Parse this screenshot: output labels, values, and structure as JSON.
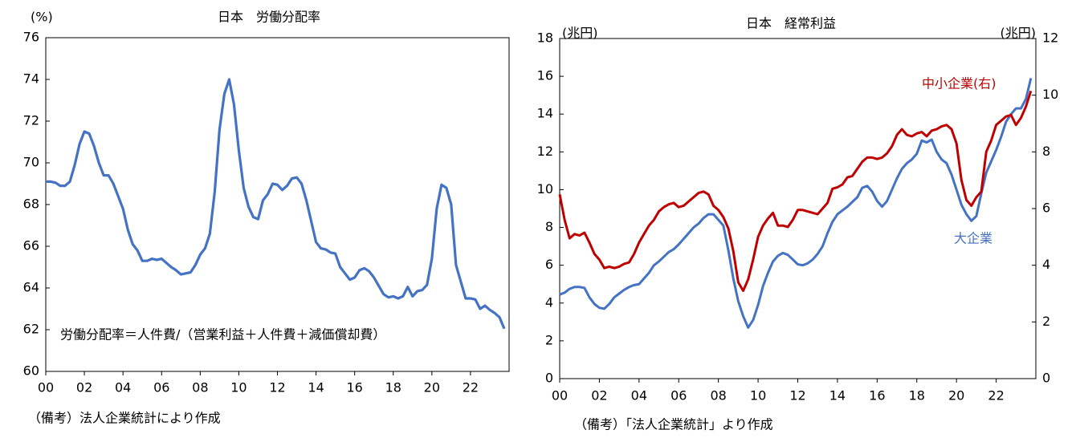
{
  "chart_data": [
    {
      "type": "line",
      "title": "日本　労働分配率",
      "ylabel": "(%)",
      "annotation": "労働分配率＝人件費/（営業利益＋人件費＋減価償却費）",
      "note": "（備考）法人企業統計により作成",
      "x": [
        2000,
        2000.25,
        2000.5,
        2000.75,
        2001,
        2001.25,
        2001.5,
        2001.75,
        2002,
        2002.25,
        2002.5,
        2002.75,
        2003,
        2003.25,
        2003.5,
        2003.75,
        2004,
        2004.25,
        2004.5,
        2004.75,
        2005,
        2005.25,
        2005.5,
        2005.75,
        2006,
        2006.25,
        2006.5,
        2006.75,
        2007,
        2007.25,
        2007.5,
        2007.75,
        2008,
        2008.25,
        2008.5,
        2008.75,
        2009,
        2009.25,
        2009.5,
        2009.75,
        2010,
        2010.25,
        2010.5,
        2010.75,
        2011,
        2011.25,
        2011.5,
        2011.75,
        2012,
        2012.25,
        2012.5,
        2012.75,
        2013,
        2013.25,
        2013.5,
        2013.75,
        2014,
        2014.25,
        2014.5,
        2014.75,
        2015,
        2015.25,
        2015.5,
        2015.75,
        2016,
        2016.25,
        2016.5,
        2016.75,
        2017,
        2017.25,
        2017.5,
        2017.75,
        2018,
        2018.25,
        2018.5,
        2018.75,
        2019,
        2019.25,
        2019.5,
        2019.75,
        2020,
        2020.25,
        2020.5,
        2020.75,
        2021,
        2021.25,
        2021.5,
        2021.75,
        2022,
        2022.25,
        2022.5,
        2022.75,
        2023,
        2023.25,
        2023.5,
        2023.75
      ],
      "series": [
        {
          "name": "労働分配率",
          "color": "#4472c4",
          "values": [
            69.1,
            69.1,
            69.05,
            68.9,
            68.9,
            69.1,
            69.9,
            70.9,
            71.5,
            71.4,
            70.8,
            70.0,
            69.4,
            69.4,
            69.0,
            68.4,
            67.8,
            66.8,
            66.1,
            65.8,
            65.3,
            65.3,
            65.4,
            65.35,
            65.4,
            65.2,
            65.0,
            64.85,
            64.65,
            64.7,
            64.75,
            65.1,
            65.6,
            65.9,
            66.6,
            68.6,
            71.6,
            73.3,
            74.0,
            72.8,
            70.6,
            68.8,
            67.9,
            67.4,
            67.3,
            68.2,
            68.5,
            69.0,
            68.95,
            68.7,
            68.9,
            69.25,
            69.3,
            69.0,
            68.2,
            67.2,
            66.2,
            65.9,
            65.85,
            65.7,
            65.65,
            65.0,
            64.7,
            64.4,
            64.5,
            64.85,
            64.95,
            64.8,
            64.5,
            64.1,
            63.7,
            63.55,
            63.6,
            63.5,
            63.6,
            64.05,
            63.6,
            63.85,
            63.9,
            64.15,
            65.4,
            67.8,
            68.95,
            68.8,
            68.0,
            65.1,
            64.3,
            63.5,
            63.5,
            63.45,
            63.0,
            63.15,
            62.95,
            62.8,
            62.6,
            62.05
          ]
        }
      ],
      "xlim": [
        2000,
        2024
      ],
      "xticks": [
        {
          "value": 2000,
          "label": "00"
        },
        {
          "value": 2002,
          "label": "02"
        },
        {
          "value": 2004,
          "label": "04"
        },
        {
          "value": 2006,
          "label": "06"
        },
        {
          "value": 2008,
          "label": "08"
        },
        {
          "value": 2010,
          "label": "10"
        },
        {
          "value": 2012,
          "label": "12"
        },
        {
          "value": 2014,
          "label": "14"
        },
        {
          "value": 2016,
          "label": "16"
        },
        {
          "value": 2018,
          "label": "18"
        },
        {
          "value": 2020,
          "label": "20"
        },
        {
          "value": 2022,
          "label": "22"
        }
      ],
      "ylim": [
        60,
        76
      ],
      "yticks": [
        60,
        62,
        64,
        66,
        68,
        70,
        72,
        74,
        76
      ],
      "grid": false
    },
    {
      "type": "line",
      "title": "日本　経常利益",
      "ylabel": "(兆円)",
      "y2label": "(兆円)",
      "note": "（備考）「法人企業統計」より作成",
      "x": [
        2000,
        2000.25,
        2000.5,
        2000.75,
        2001,
        2001.25,
        2001.5,
        2001.75,
        2002,
        2002.25,
        2002.5,
        2002.75,
        2003,
        2003.25,
        2003.5,
        2003.75,
        2004,
        2004.25,
        2004.5,
        2004.75,
        2005,
        2005.25,
        2005.5,
        2005.75,
        2006,
        2006.25,
        2006.5,
        2006.75,
        2007,
        2007.25,
        2007.5,
        2007.75,
        2008,
        2008.25,
        2008.5,
        2008.75,
        2009,
        2009.25,
        2009.5,
        2009.75,
        2010,
        2010.25,
        2010.5,
        2010.75,
        2011,
        2011.25,
        2011.5,
        2011.75,
        2012,
        2012.25,
        2012.5,
        2012.75,
        2013,
        2013.25,
        2013.5,
        2013.75,
        2014,
        2014.25,
        2014.5,
        2014.75,
        2015,
        2015.25,
        2015.5,
        2015.75,
        2016,
        2016.25,
        2016.5,
        2016.75,
        2017,
        2017.25,
        2017.5,
        2017.75,
        2018,
        2018.25,
        2018.5,
        2018.75,
        2019,
        2019.25,
        2019.5,
        2019.75,
        2020,
        2020.25,
        2020.5,
        2020.75,
        2021,
        2021.25,
        2021.5,
        2021.75,
        2022,
        2022.25,
        2022.5,
        2022.75,
        2023,
        2023.25,
        2023.5,
        2023.75
      ],
      "series": [
        {
          "name": "大企業",
          "color": "#4472c4",
          "values": [
            4.45,
            4.55,
            4.75,
            4.85,
            4.85,
            4.8,
            4.3,
            3.95,
            3.75,
            3.7,
            3.95,
            4.3,
            4.5,
            4.7,
            4.85,
            4.95,
            5.0,
            5.3,
            5.6,
            6.0,
            6.2,
            6.45,
            6.7,
            6.85,
            7.1,
            7.4,
            7.7,
            8.0,
            8.2,
            8.5,
            8.7,
            8.7,
            8.4,
            8.1,
            6.8,
            5.3,
            4.1,
            3.3,
            2.7,
            3.1,
            3.9,
            4.9,
            5.6,
            6.2,
            6.5,
            6.65,
            6.55,
            6.3,
            6.05,
            6.0,
            6.1,
            6.3,
            6.6,
            7.0,
            7.7,
            8.3,
            8.7,
            8.9,
            9.1,
            9.35,
            9.6,
            10.1,
            10.2,
            9.9,
            9.4,
            9.1,
            9.4,
            10.0,
            10.6,
            11.1,
            11.4,
            11.6,
            11.9,
            12.6,
            12.5,
            12.65,
            12.0,
            11.6,
            11.4,
            10.8,
            10.0,
            9.2,
            8.7,
            8.35,
            8.6,
            9.8,
            10.9,
            11.5,
            12.1,
            12.8,
            13.6,
            14.0,
            14.3,
            14.3,
            14.8,
            15.9
          ]
        },
        {
          "name": "中小企業(右)",
          "color": "#c00000",
          "axis": "y2",
          "values": [
            6.5,
            5.6,
            4.95,
            5.1,
            5.05,
            5.15,
            4.8,
            4.4,
            4.2,
            3.9,
            3.95,
            3.9,
            3.95,
            4.05,
            4.1,
            4.4,
            4.8,
            5.1,
            5.4,
            5.6,
            5.9,
            6.05,
            6.15,
            6.2,
            6.05,
            6.1,
            6.25,
            6.4,
            6.55,
            6.6,
            6.5,
            6.1,
            5.95,
            5.7,
            5.3,
            4.5,
            3.4,
            3.1,
            3.5,
            4.2,
            5.0,
            5.4,
            5.65,
            5.85,
            5.4,
            5.4,
            5.35,
            5.6,
            5.95,
            5.95,
            5.9,
            5.85,
            5.8,
            6.0,
            6.2,
            6.7,
            6.75,
            6.85,
            7.1,
            7.15,
            7.4,
            7.65,
            7.8,
            7.8,
            7.75,
            7.8,
            7.95,
            8.2,
            8.6,
            8.8,
            8.6,
            8.55,
            8.65,
            8.7,
            8.55,
            8.75,
            8.8,
            8.9,
            8.95,
            8.8,
            8.3,
            7.0,
            6.3,
            6.1,
            6.4,
            6.6,
            8.0,
            8.4,
            8.95,
            9.1,
            9.25,
            9.3,
            8.95,
            9.2,
            9.6,
            10.15
          ]
        }
      ],
      "xlim": [
        2000,
        2024
      ],
      "xticks": [
        {
          "value": 2000,
          "label": "00"
        },
        {
          "value": 2002,
          "label": "02"
        },
        {
          "value": 2004,
          "label": "04"
        },
        {
          "value": 2006,
          "label": "06"
        },
        {
          "value": 2008,
          "label": "08"
        },
        {
          "value": 2010,
          "label": "10"
        },
        {
          "value": 2012,
          "label": "12"
        },
        {
          "value": 2014,
          "label": "14"
        },
        {
          "value": 2016,
          "label": "16"
        },
        {
          "value": 2018,
          "label": "18"
        },
        {
          "value": 2020,
          "label": "20"
        },
        {
          "value": 2022,
          "label": "22"
        }
      ],
      "ylim": [
        0,
        18
      ],
      "yticks": [
        0,
        2,
        4,
        6,
        8,
        10,
        12,
        14,
        16,
        18
      ],
      "y2lim": [
        0,
        12
      ],
      "y2ticks": [
        0,
        2,
        4,
        6,
        8,
        10,
        12
      ],
      "grid": false
    }
  ]
}
